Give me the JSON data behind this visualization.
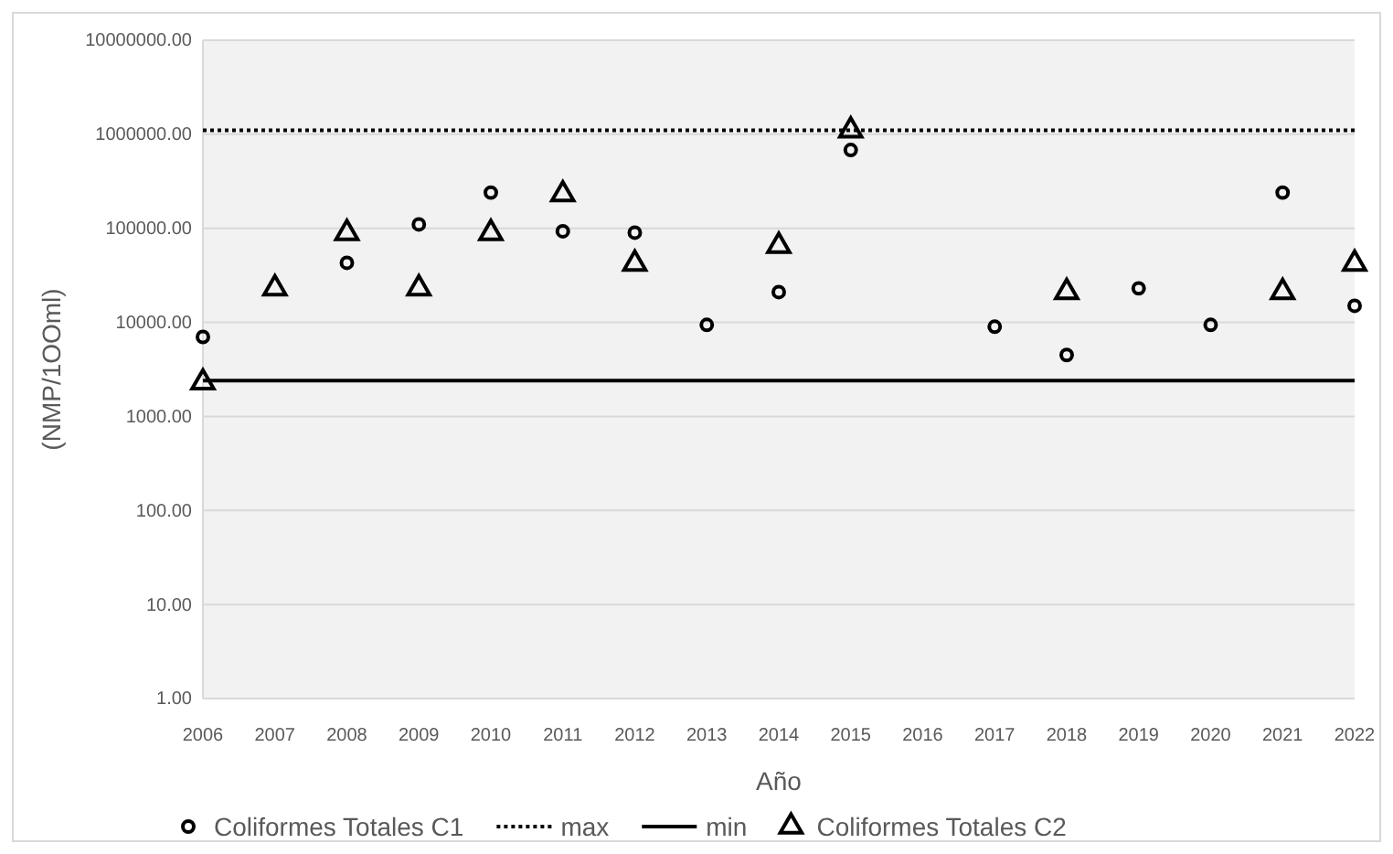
{
  "chart_data": {
    "type": "scatter",
    "xlabel": "Año",
    "ylabel": "(NMP/1OOml)",
    "log": "y",
    "categories": [
      "2006",
      "2007",
      "2008",
      "2009",
      "2010",
      "2011",
      "2012",
      "2013",
      "2014",
      "2015",
      "2016",
      "2017",
      "2018",
      "2019",
      "2020",
      "2021",
      "2022"
    ],
    "ylim": [
      1,
      10000000
    ],
    "yticks": [
      {
        "value": 1,
        "label": "1.00"
      },
      {
        "value": 10,
        "label": "10.00"
      },
      {
        "value": 100,
        "label": "100.00"
      },
      {
        "value": 1000,
        "label": "1000.00"
      },
      {
        "value": 10000,
        "label": "10000.00"
      },
      {
        "value": 100000,
        "label": "100000.00"
      },
      {
        "value": 1000000,
        "label": "1000000.00"
      },
      {
        "value": 10000000,
        "label": "10000000.00"
      }
    ],
    "grid": "y",
    "legend": "bottom",
    "series": [
      {
        "name": "Coliformes Totales C1",
        "color": "#000000",
        "marker": "circle",
        "values": [
          7000,
          null,
          43000,
          110000,
          240000,
          93000,
          90000,
          9400,
          21000,
          680000,
          null,
          9000,
          4500,
          23000,
          9400,
          240000,
          15000
        ]
      },
      {
        "name": "Coliformes Totales C2",
        "color": "#000000",
        "marker": "triangle",
        "values": [
          2300,
          23000,
          89000,
          23000,
          89000,
          230000,
          42000,
          null,
          65000,
          1100000,
          null,
          null,
          21000,
          null,
          null,
          21000,
          42000
        ]
      }
    ],
    "ref_lines": [
      {
        "axis": "y",
        "value": 1100000,
        "label": "max",
        "color": "#000000",
        "line_style": "dotted"
      },
      {
        "axis": "y",
        "value": 2400,
        "label": "min",
        "color": "#000000",
        "line_style": "solid"
      }
    ]
  }
}
